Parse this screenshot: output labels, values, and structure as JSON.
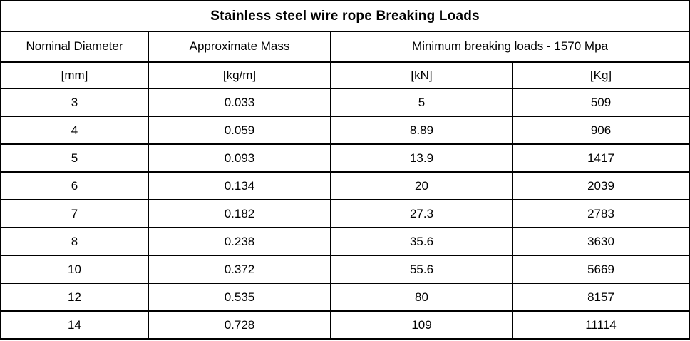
{
  "table": {
    "title": "Stainless steel wire rope Breaking Loads",
    "headers": {
      "nominal_diameter": "Nominal Diameter",
      "approximate_mass": "Approximate Mass",
      "min_breaking_loads": "Minimum breaking loads - 1570 Mpa"
    },
    "units": [
      "[mm]",
      "[kg/m]",
      "[kN]",
      "[Kg]"
    ],
    "rows": [
      [
        "3",
        "0.033",
        "5",
        "509"
      ],
      [
        "4",
        "0.059",
        "8.89",
        "906"
      ],
      [
        "5",
        "0.093",
        "13.9",
        "1417"
      ],
      [
        "6",
        "0.134",
        "20",
        "2039"
      ],
      [
        "7",
        "0.182",
        "27.3",
        "2783"
      ],
      [
        "8",
        "0.238",
        "35.6",
        "3630"
      ],
      [
        "10",
        "0.372",
        "55.6",
        "5669"
      ],
      [
        "12",
        "0.535",
        "80",
        "8157"
      ],
      [
        "14",
        "0.728",
        "109",
        "11114"
      ]
    ]
  },
  "chart_data": {
    "type": "table",
    "title": "Stainless steel wire rope Breaking Loads",
    "columns": [
      "Nominal Diameter [mm]",
      "Approximate Mass [kg/m]",
      "Minimum breaking loads - 1570 Mpa [kN]",
      "Minimum breaking loads - 1570 Mpa [Kg]"
    ],
    "rows": [
      [
        3,
        0.033,
        5,
        509
      ],
      [
        4,
        0.059,
        8.89,
        906
      ],
      [
        5,
        0.093,
        13.9,
        1417
      ],
      [
        6,
        0.134,
        20,
        2039
      ],
      [
        7,
        0.182,
        27.3,
        2783
      ],
      [
        8,
        0.238,
        35.6,
        3630
      ],
      [
        10,
        0.372,
        55.6,
        5669
      ],
      [
        12,
        0.535,
        80,
        8157
      ],
      [
        14,
        0.728,
        109,
        11114
      ]
    ],
    "layout": {
      "title_row_span": 4,
      "merged_header_span": [
        3,
        4
      ],
      "grid": true,
      "text_color": "#000000",
      "border_color": "#000000",
      "background_color": "#ffffff"
    }
  }
}
